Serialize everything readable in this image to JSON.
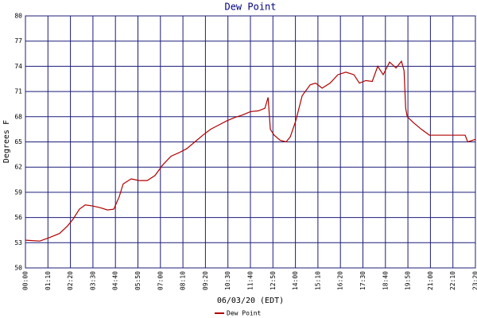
{
  "chart_data": {
    "type": "line",
    "title": "Dew Point",
    "x_label": "06/03/20 (EDT)",
    "y_label": "Degrees F",
    "x": [
      0,
      45,
      74,
      106,
      131,
      148,
      168,
      186,
      205,
      230,
      255,
      275,
      292,
      304,
      329,
      354,
      379,
      403,
      428,
      453,
      477,
      502,
      527,
      552,
      576,
      601,
      626,
      651,
      675,
      700,
      725,
      745,
      755,
      762,
      774,
      792,
      811,
      824,
      841,
      861,
      886,
      903,
      923,
      948,
      972,
      997,
      1022,
      1039,
      1059,
      1079,
      1096,
      1113,
      1133,
      1153,
      1170,
      1178,
      1183,
      1188,
      1207,
      1232,
      1257,
      1274,
      1306,
      1343,
      1368,
      1376,
      1400
    ],
    "series": [
      {
        "name": "Dew Point",
        "color": "#b00000",
        "values": [
          53.3,
          53.2,
          53.6,
          54.1,
          55.0,
          55.8,
          57.0,
          57.5,
          57.4,
          57.2,
          56.9,
          57.0,
          58.5,
          60.0,
          60.6,
          60.4,
          60.4,
          61.0,
          62.3,
          63.3,
          63.7,
          64.2,
          65.0,
          65.8,
          66.5,
          67.0,
          67.5,
          67.9,
          68.2,
          68.6,
          68.7,
          69.0,
          70.3,
          66.5,
          65.8,
          65.2,
          65.0,
          65.6,
          67.5,
          70.5,
          71.8,
          72.0,
          71.4,
          72.0,
          73.0,
          73.3,
          73.0,
          72.0,
          72.3,
          72.2,
          74.0,
          73.0,
          74.5,
          73.8,
          74.6,
          73.5,
          69.0,
          68.0,
          67.3,
          66.5,
          65.8,
          65.8,
          65.8,
          65.8,
          65.8,
          65.0,
          65.3
        ]
      }
    ],
    "xlim": [
      0,
      1400
    ],
    "xticks": [
      {
        "value": 0,
        "label": "00:00"
      },
      {
        "value": 70,
        "label": "01:10"
      },
      {
        "value": 140,
        "label": "02:20"
      },
      {
        "value": 210,
        "label": "03:30"
      },
      {
        "value": 280,
        "label": "04:40"
      },
      {
        "value": 350,
        "label": "05:50"
      },
      {
        "value": 420,
        "label": "07:00"
      },
      {
        "value": 490,
        "label": "08:10"
      },
      {
        "value": 560,
        "label": "09:20"
      },
      {
        "value": 630,
        "label": "10:30"
      },
      {
        "value": 700,
        "label": "11:40"
      },
      {
        "value": 770,
        "label": "12:50"
      },
      {
        "value": 840,
        "label": "14:00"
      },
      {
        "value": 910,
        "label": "15:10"
      },
      {
        "value": 980,
        "label": "16:20"
      },
      {
        "value": 1050,
        "label": "17:30"
      },
      {
        "value": 1120,
        "label": "18:40"
      },
      {
        "value": 1190,
        "label": "19:50"
      },
      {
        "value": 1260,
        "label": "21:00"
      },
      {
        "value": 1330,
        "label": "22:10"
      },
      {
        "value": 1400,
        "label": "23:20"
      }
    ],
    "ylim": [
      50,
      80
    ],
    "yticks": [
      50,
      53,
      56,
      59,
      62,
      65,
      68,
      71,
      74,
      77,
      80
    ],
    "grid": true,
    "grid_color": "#1c1c7a",
    "legend": "bottom"
  }
}
